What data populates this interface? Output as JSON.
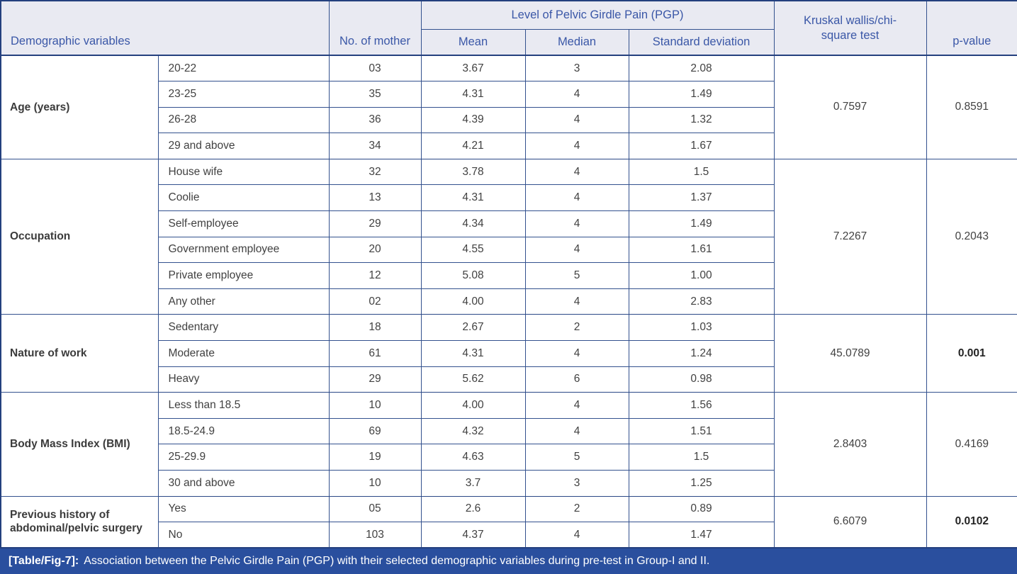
{
  "table": {
    "header": {
      "demographic_variables": "Demographic variables",
      "no_of_mother": "No. of mother",
      "pgp_group": "Level of Pelvic Girdle Pain (PGP)",
      "mean": "Mean",
      "median": "Median",
      "standard_deviation": "Standard deviation",
      "test": "Kruskal wallis/chi-square test",
      "p_value": "p-value"
    },
    "groups": [
      {
        "variable": "Age (years)",
        "rows": [
          {
            "category": "20-22",
            "n": "03",
            "mean": "3.67",
            "median": "3",
            "sd": "2.08"
          },
          {
            "category": "23-25",
            "n": "35",
            "mean": "4.31",
            "median": "4",
            "sd": "1.49"
          },
          {
            "category": "26-28",
            "n": "36",
            "mean": "4.39",
            "median": "4",
            "sd": "1.32"
          },
          {
            "category": "29 and above",
            "n": "34",
            "mean": "4.21",
            "median": "4",
            "sd": "1.67"
          }
        ],
        "test": "0.7597",
        "p_value": "0.8591",
        "p_bold": false
      },
      {
        "variable": "Occupation",
        "rows": [
          {
            "category": "House wife",
            "n": "32",
            "mean": "3.78",
            "median": "4",
            "sd": "1.5"
          },
          {
            "category": "Coolie",
            "n": "13",
            "mean": "4.31",
            "median": "4",
            "sd": "1.37"
          },
          {
            "category": "Self-employee",
            "n": "29",
            "mean": "4.34",
            "median": "4",
            "sd": "1.49"
          },
          {
            "category": "Government employee",
            "n": "20",
            "mean": "4.55",
            "median": "4",
            "sd": "1.61"
          },
          {
            "category": "Private employee",
            "n": "12",
            "mean": "5.08",
            "median": "5",
            "sd": "1.00"
          },
          {
            "category": "Any other",
            "n": "02",
            "mean": "4.00",
            "median": "4",
            "sd": "2.83"
          }
        ],
        "test": "7.2267",
        "p_value": "0.2043",
        "p_bold": false
      },
      {
        "variable": "Nature of work",
        "rows": [
          {
            "category": "Sedentary",
            "n": "18",
            "mean": "2.67",
            "median": "2",
            "sd": "1.03"
          },
          {
            "category": "Moderate",
            "n": "61",
            "mean": "4.31",
            "median": "4",
            "sd": "1.24"
          },
          {
            "category": "Heavy",
            "n": "29",
            "mean": "5.62",
            "median": "6",
            "sd": "0.98"
          }
        ],
        "test": "45.0789",
        "p_value": "0.001",
        "p_bold": true
      },
      {
        "variable": "Body Mass Index (BMI)",
        "rows": [
          {
            "category": "Less than 18.5",
            "n": "10",
            "mean": "4.00",
            "median": "4",
            "sd": "1.56"
          },
          {
            "category": "18.5-24.9",
            "n": "69",
            "mean": "4.32",
            "median": "4",
            "sd": "1.51"
          },
          {
            "category": "25-29.9",
            "n": "19",
            "mean": "4.63",
            "median": "5",
            "sd": "1.5"
          },
          {
            "category": "30 and above",
            "n": "10",
            "mean": "3.7",
            "median": "3",
            "sd": "1.25"
          }
        ],
        "test": "2.8403",
        "p_value": "0.4169",
        "p_bold": false
      },
      {
        "variable": "Previous history of abdominal/pelvic surgery",
        "rows": [
          {
            "category": "Yes",
            "n": "05",
            "mean": "2.6",
            "median": "2",
            "sd": "0.89"
          },
          {
            "category": "No",
            "n": "103",
            "mean": "4.37",
            "median": "4",
            "sd": "1.47"
          }
        ],
        "test": "6.6079",
        "p_value": "0.0102",
        "p_bold": true
      }
    ],
    "caption": {
      "label": "[Table/Fig-7]:",
      "text": "Association between the Pelvic Girdle Pain (PGP) with their selected demographic variables during pre-test in Group-I and II."
    },
    "colors": {
      "header_bg": "#e9eaf2",
      "header_text": "#3a57a7",
      "border": "#33518e",
      "caption_bg": "#2a4f9e",
      "caption_text": "#ffffff",
      "body_text": "#414141"
    }
  }
}
